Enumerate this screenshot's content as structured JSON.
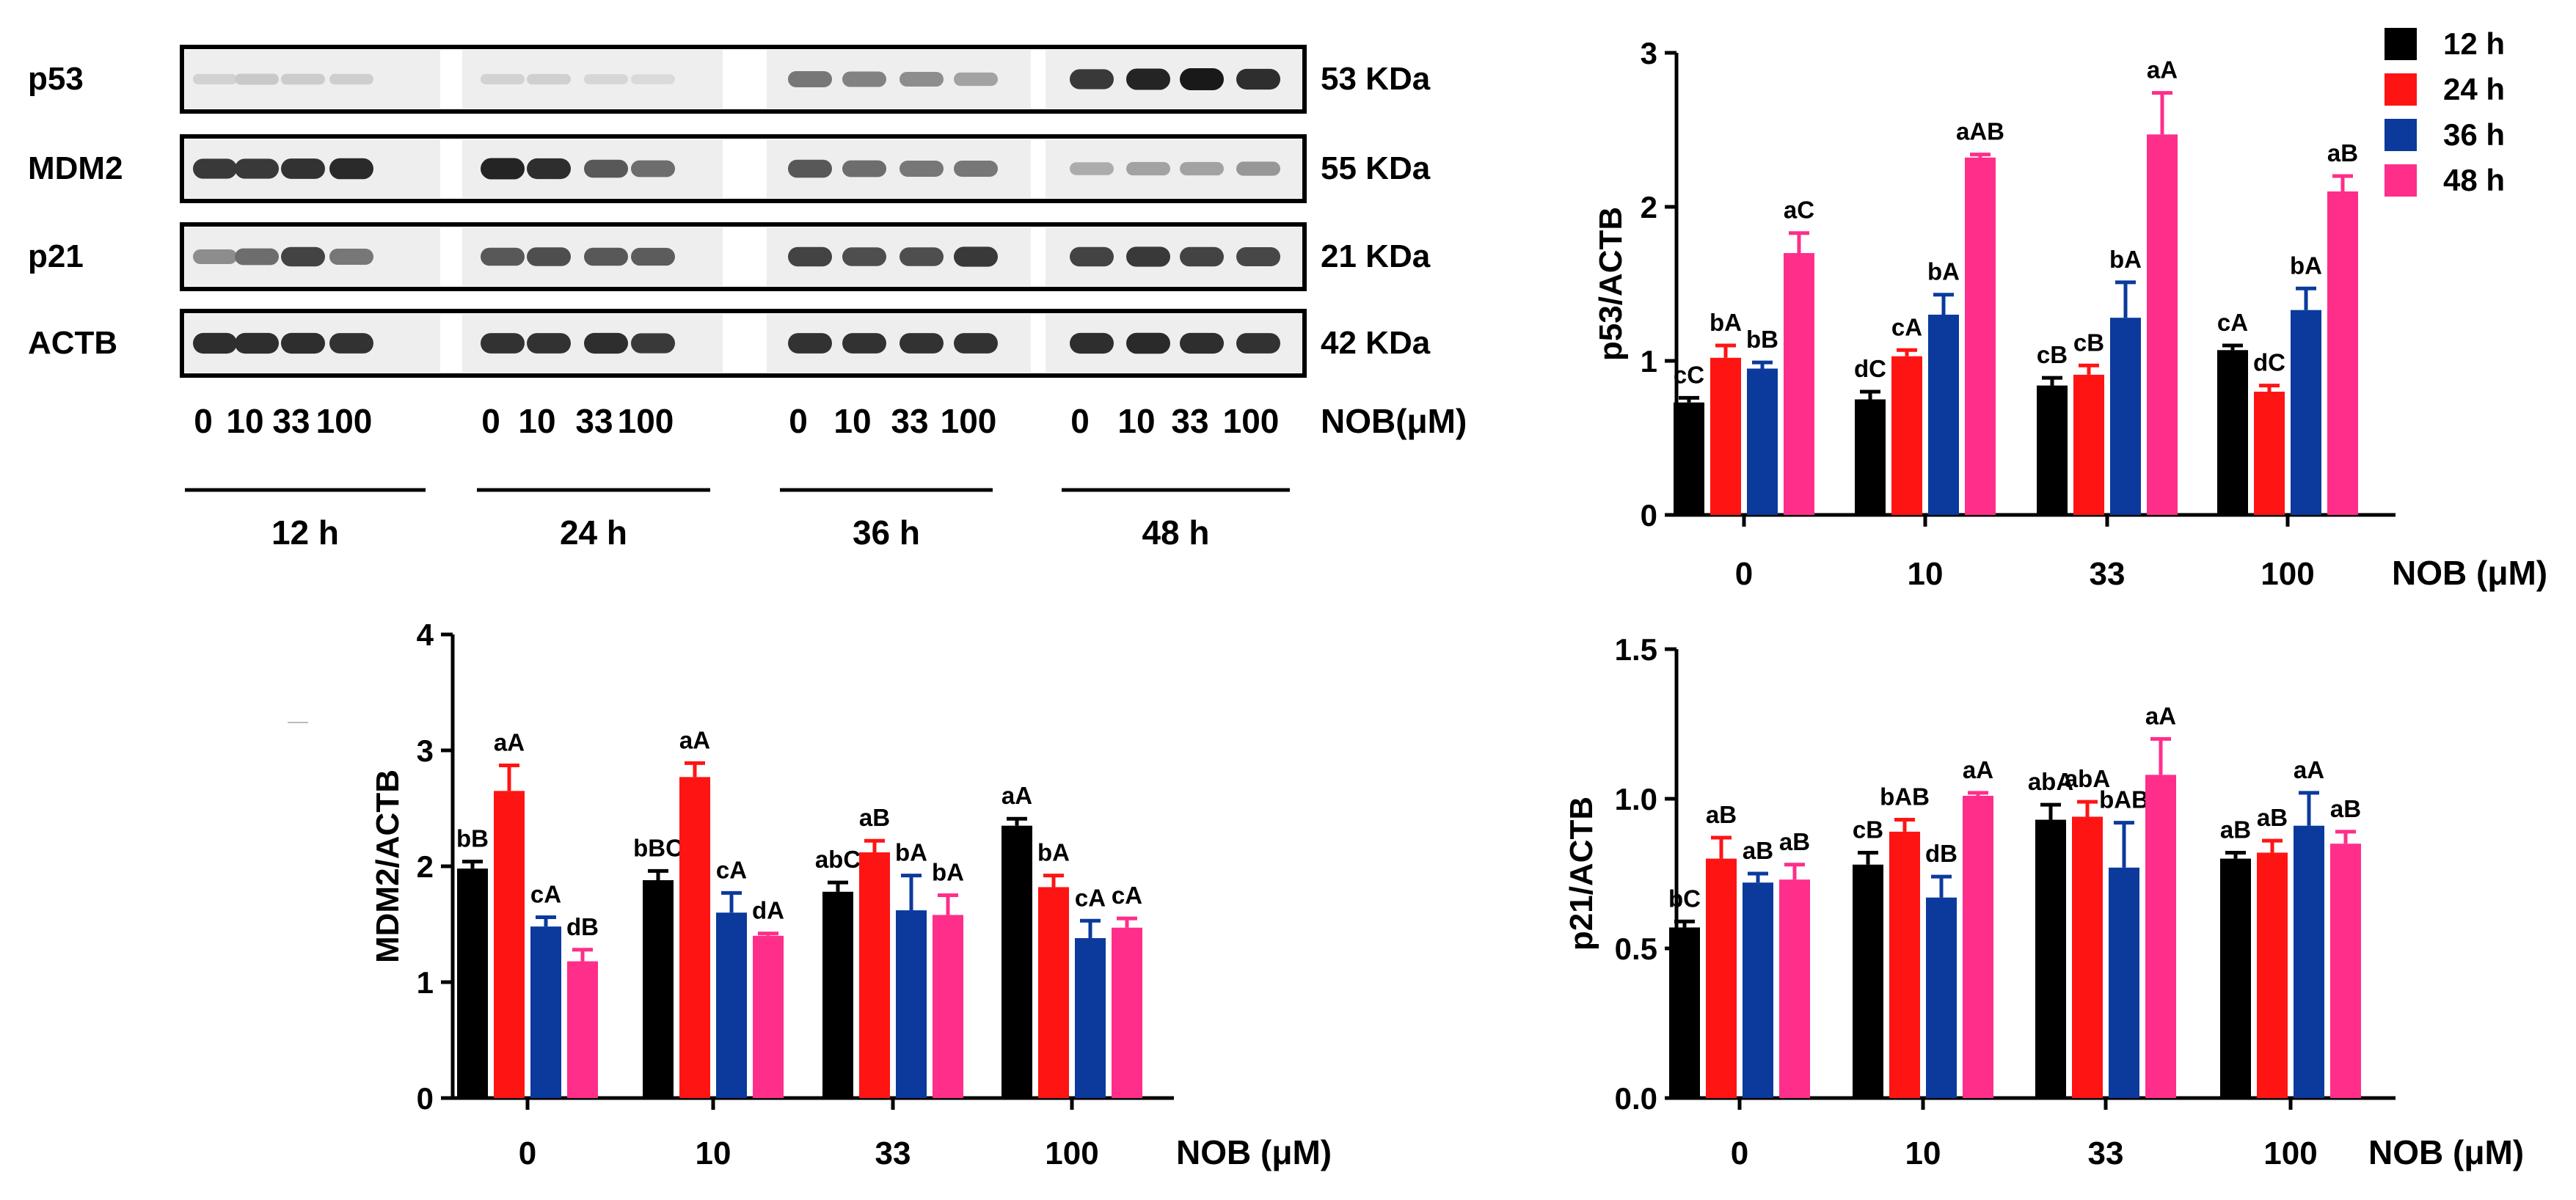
{
  "colors": {
    "c12": "#000000",
    "c24": "#ff1414",
    "c36": "#0b3a9c",
    "c48": "#ff2e8a"
  },
  "blot": {
    "proteins": [
      {
        "name": "p53",
        "size": "53 KDa"
      },
      {
        "name": "MDM2",
        "size": "55 KDa"
      },
      {
        "name": "p21",
        "size": "21 KDa"
      },
      {
        "name": "ACTB",
        "size": "42 KDa"
      }
    ],
    "dose_labels": [
      "0",
      "10",
      "33",
      "100"
    ],
    "dose_axis": "NOB(μM)",
    "groups": [
      "12 h",
      "24 h",
      "36 h",
      "48 h"
    ],
    "band_intensity": [
      [
        [
          0.12,
          0.16,
          0.15,
          0.14
        ],
        [
          0.12,
          0.13,
          0.1,
          0.08
        ],
        [
          0.55,
          0.5,
          0.45,
          0.35
        ],
        [
          0.85,
          0.95,
          1.0,
          0.9
        ]
      ],
      [
        [
          0.85,
          0.85,
          0.88,
          0.92
        ],
        [
          0.95,
          0.9,
          0.7,
          0.6
        ],
        [
          0.7,
          0.6,
          0.55,
          0.55
        ],
        [
          0.3,
          0.35,
          0.35,
          0.4
        ]
      ],
      [
        [
          0.45,
          0.6,
          0.8,
          0.55
        ],
        [
          0.7,
          0.75,
          0.7,
          0.68
        ],
        [
          0.8,
          0.75,
          0.75,
          0.85
        ],
        [
          0.8,
          0.85,
          0.8,
          0.78
        ]
      ],
      [
        [
          0.9,
          0.9,
          0.9,
          0.88
        ],
        [
          0.88,
          0.88,
          0.9,
          0.85
        ],
        [
          0.88,
          0.88,
          0.88,
          0.88
        ],
        [
          0.9,
          0.92,
          0.9,
          0.88
        ]
      ]
    ]
  },
  "chart_data": [
    {
      "type": "bar",
      "id": "p53",
      "ylabel": "p53/ACTB",
      "xlabel": "NOB (μM)",
      "categories": [
        "0",
        "10",
        "33",
        "100"
      ],
      "ylim": [
        0,
        3
      ],
      "yticks": [
        "0",
        "1",
        "2",
        "3"
      ],
      "ytick_values": [
        0,
        1,
        2,
        3
      ],
      "legend": [
        "12 h",
        "24 h",
        "36 h",
        "48 h"
      ],
      "series": [
        {
          "name": "12 h",
          "values": [
            0.73,
            0.75,
            0.84,
            1.07
          ],
          "errors": [
            0.03,
            0.05,
            0.05,
            0.03
          ],
          "labels": [
            "cC",
            "dC",
            "cB",
            "cA"
          ]
        },
        {
          "name": "24 h",
          "values": [
            1.02,
            1.03,
            0.91,
            0.8
          ],
          "errors": [
            0.08,
            0.04,
            0.06,
            0.04
          ],
          "labels": [
            "bA",
            "cA",
            "cB",
            "dC"
          ]
        },
        {
          "name": "36 h",
          "values": [
            0.95,
            1.3,
            1.28,
            1.33
          ],
          "errors": [
            0.04,
            0.13,
            0.23,
            0.14
          ],
          "labels": [
            "bB",
            "bA",
            "bA",
            "bA"
          ]
        },
        {
          "name": "48 h",
          "values": [
            1.7,
            2.32,
            2.47,
            2.1
          ],
          "errors": [
            0.13,
            0.02,
            0.27,
            0.1
          ],
          "labels": [
            "aC",
            "aAB",
            "aA",
            "aB"
          ]
        }
      ]
    },
    {
      "type": "bar",
      "id": "mdm2",
      "ylabel": "MDM2/ACTB",
      "xlabel": "NOB (μM)",
      "categories": [
        "0",
        "10",
        "33",
        "100"
      ],
      "ylim": [
        0,
        4
      ],
      "yticks": [
        "0",
        "1",
        "2",
        "3",
        "4"
      ],
      "ytick_values": [
        0,
        1,
        2,
        3,
        4
      ],
      "series": [
        {
          "name": "12 h",
          "values": [
            1.98,
            1.88,
            1.78,
            2.35
          ],
          "errors": [
            0.06,
            0.08,
            0.08,
            0.06
          ],
          "labels": [
            "bB",
            "bBC",
            "abC",
            "aA"
          ]
        },
        {
          "name": "24 h",
          "values": [
            2.65,
            2.77,
            2.12,
            1.82
          ],
          "errors": [
            0.22,
            0.12,
            0.1,
            0.1
          ],
          "labels": [
            "aA",
            "aA",
            "aB",
            "bA"
          ]
        },
        {
          "name": "36 h",
          "values": [
            1.48,
            1.6,
            1.62,
            1.38
          ],
          "errors": [
            0.08,
            0.17,
            0.3,
            0.15
          ],
          "labels": [
            "cA",
            "cA",
            "bA",
            "cA"
          ]
        },
        {
          "name": "48 h",
          "values": [
            1.18,
            1.4,
            1.58,
            1.47
          ],
          "errors": [
            0.1,
            0.02,
            0.17,
            0.08
          ],
          "labels": [
            "dB",
            "dA",
            "bA",
            "cA"
          ]
        }
      ]
    },
    {
      "type": "bar",
      "id": "p21",
      "ylabel": "p21/ACTB",
      "xlabel": "NOB (μM)",
      "categories": [
        "0",
        "10",
        "33",
        "100"
      ],
      "ylim": [
        0,
        1.5
      ],
      "yticks": [
        "0.0",
        "0.5",
        "1.0",
        "1.5"
      ],
      "ytick_values": [
        0,
        0.5,
        1,
        1.5
      ],
      "series": [
        {
          "name": "12 h",
          "values": [
            0.57,
            0.78,
            0.93,
            0.8
          ],
          "errors": [
            0.02,
            0.04,
            0.05,
            0.02
          ],
          "labels": [
            "bC",
            "cB",
            "abA",
            "aB"
          ]
        },
        {
          "name": "24 h",
          "values": [
            0.8,
            0.89,
            0.94,
            0.82
          ],
          "errors": [
            0.07,
            0.04,
            0.05,
            0.04
          ],
          "labels": [
            "aB",
            "bAB",
            "abA",
            "aB"
          ]
        },
        {
          "name": "36 h",
          "values": [
            0.72,
            0.67,
            0.77,
            0.91
          ],
          "errors": [
            0.03,
            0.07,
            0.15,
            0.11
          ],
          "labels": [
            "aB",
            "dB",
            "bAB",
            "aA"
          ]
        },
        {
          "name": "48 h",
          "values": [
            0.73,
            1.01,
            1.08,
            0.85
          ],
          "errors": [
            0.05,
            0.01,
            0.12,
            0.04
          ],
          "labels": [
            "aB",
            "aA",
            "aA",
            "aB"
          ]
        }
      ]
    }
  ]
}
